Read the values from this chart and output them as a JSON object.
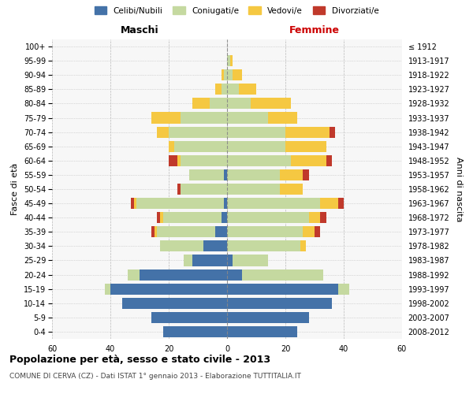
{
  "age_groups": [
    "0-4",
    "5-9",
    "10-14",
    "15-19",
    "20-24",
    "25-29",
    "30-34",
    "35-39",
    "40-44",
    "45-49",
    "50-54",
    "55-59",
    "60-64",
    "65-69",
    "70-74",
    "75-79",
    "80-84",
    "85-89",
    "90-94",
    "95-99",
    "100+"
  ],
  "birth_years": [
    "2008-2012",
    "2003-2007",
    "1998-2002",
    "1993-1997",
    "1988-1992",
    "1983-1987",
    "1978-1982",
    "1973-1977",
    "1968-1972",
    "1963-1967",
    "1958-1962",
    "1953-1957",
    "1948-1952",
    "1943-1947",
    "1938-1942",
    "1933-1937",
    "1928-1932",
    "1923-1927",
    "1918-1922",
    "1913-1917",
    "≤ 1912"
  ],
  "male": {
    "celibi": [
      22,
      26,
      36,
      40,
      30,
      12,
      8,
      4,
      2,
      1,
      0,
      1,
      0,
      0,
      0,
      0,
      0,
      0,
      0,
      0,
      0
    ],
    "coniugati": [
      0,
      0,
      0,
      2,
      4,
      3,
      15,
      20,
      20,
      30,
      16,
      12,
      16,
      18,
      20,
      16,
      6,
      2,
      1,
      0,
      0
    ],
    "vedovi": [
      0,
      0,
      0,
      0,
      0,
      0,
      0,
      1,
      1,
      1,
      0,
      0,
      1,
      2,
      4,
      10,
      6,
      2,
      1,
      0,
      0
    ],
    "divorziati": [
      0,
      0,
      0,
      0,
      0,
      0,
      0,
      1,
      1,
      1,
      1,
      0,
      3,
      0,
      0,
      0,
      0,
      0,
      0,
      0,
      0
    ]
  },
  "female": {
    "nubili": [
      24,
      28,
      36,
      38,
      5,
      2,
      0,
      0,
      0,
      0,
      0,
      0,
      0,
      0,
      0,
      0,
      0,
      0,
      0,
      0,
      0
    ],
    "coniugate": [
      0,
      0,
      0,
      4,
      28,
      12,
      25,
      26,
      28,
      32,
      18,
      18,
      22,
      20,
      20,
      14,
      8,
      4,
      2,
      1,
      0
    ],
    "vedove": [
      0,
      0,
      0,
      0,
      0,
      0,
      2,
      4,
      4,
      6,
      8,
      8,
      12,
      14,
      15,
      10,
      14,
      6,
      3,
      1,
      0
    ],
    "divorziate": [
      0,
      0,
      0,
      0,
      0,
      0,
      0,
      2,
      2,
      2,
      0,
      2,
      2,
      0,
      2,
      0,
      0,
      0,
      0,
      0,
      0
    ]
  },
  "colors": {
    "celibi_nubili": "#4472a8",
    "coniugati": "#c5d9a0",
    "vedovi": "#f5c842",
    "divorziati": "#c0392b"
  },
  "xlim": 60,
  "title": "Popolazione per età, sesso e stato civile - 2013",
  "subtitle": "COMUNE DI CERVA (CZ) - Dati ISTAT 1° gennaio 2013 - Elaborazione TUTTITALIA.IT",
  "ylabel_left": "Fasce di età",
  "ylabel_right": "Anni di nascita",
  "xlabel_left": "Maschi",
  "xlabel_right": "Femmine"
}
